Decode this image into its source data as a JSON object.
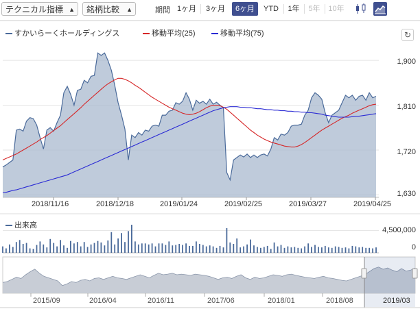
{
  "toolbar": {
    "indicator_select": "テクニカル指標",
    "compare_select": "銘柄比較",
    "period_label": "期間",
    "periods": [
      "1ヶ月",
      "3ヶ月",
      "6ヶ月",
      "YTD",
      "1年",
      "5年",
      "10年"
    ],
    "active_period": "6ヶ月",
    "disabled_periods": [
      "5年",
      "10年"
    ],
    "chart_modes": [
      "candlestick-icon",
      "area-chart-icon"
    ],
    "active_mode": "area-chart-icon"
  },
  "legend": {
    "series": [
      {
        "name": "すかいらーくホールディングス",
        "color": "#4a6a9a"
      },
      {
        "name": "移動平均(25)",
        "color": "#d62728"
      },
      {
        "name": "移動平均(75)",
        "color": "#2a2ad4"
      }
    ]
  },
  "refresh_icon": "refresh-icon",
  "chart_data": [
    {
      "type": "area",
      "x_labels": [
        "2018/11/16",
        "2018/12/18",
        "2019/01/24",
        "2019/02/25",
        "2019/03/27",
        "2019/04/25"
      ],
      "y_ticks": [
        1630,
        1720,
        1810,
        1900
      ],
      "ylim": [
        1625,
        1925
      ],
      "grid": true,
      "series": [
        {
          "name": "すかいらーくホールディングス",
          "values": [
            1686,
            1690,
            1695,
            1700,
            1760,
            1762,
            1758,
            1778,
            1785,
            1783,
            1770,
            1745,
            1722,
            1760,
            1765,
            1758,
            1775,
            1790,
            1835,
            1848,
            1832,
            1810,
            1840,
            1842,
            1860,
            1855,
            1868,
            1870,
            1915,
            1910,
            1915,
            1900,
            1880,
            1850,
            1815,
            1790,
            1762,
            1700,
            1750,
            1745,
            1755,
            1750,
            1760,
            1758,
            1768,
            1770,
            1768,
            1790,
            1790,
            1798,
            1800,
            1815,
            1812,
            1818,
            1835,
            1822,
            1800,
            1820,
            1814,
            1818,
            1812,
            1822,
            1812,
            1816,
            1810,
            1805,
            1675,
            1660,
            1700,
            1705,
            1710,
            1706,
            1712,
            1705,
            1710,
            1705,
            1710,
            1712,
            1708,
            1722,
            1745,
            1740,
            1752,
            1750,
            1755,
            1768,
            1770,
            1770,
            1772,
            1790,
            1800,
            1825,
            1835,
            1830,
            1822,
            1795,
            1775,
            1790,
            1795,
            1800,
            1815,
            1830,
            1825,
            1830,
            1820,
            1828,
            1830,
            1820,
            1835,
            1825,
            1828
          ]
        },
        {
          "name": "移動平均(25)",
          "values": [
            1700,
            1703,
            1706,
            1709,
            1712,
            1716,
            1720,
            1724,
            1728,
            1732,
            1736,
            1741,
            1745,
            1749,
            1754,
            1759,
            1764,
            1769,
            1775,
            1781,
            1787,
            1793,
            1799,
            1805,
            1812,
            1818,
            1824,
            1830,
            1836,
            1842,
            1848,
            1853,
            1857,
            1861,
            1864,
            1864,
            1862,
            1859,
            1855,
            1850,
            1846,
            1841,
            1836,
            1831,
            1826,
            1822,
            1818,
            1814,
            1810,
            1806,
            1803,
            1800,
            1797,
            1794,
            1792,
            1791,
            1792,
            1794,
            1797,
            1801,
            1805,
            1808,
            1810,
            1810,
            1809,
            1806,
            1802,
            1796,
            1790,
            1784,
            1778,
            1772,
            1766,
            1760,
            1755,
            1750,
            1746,
            1742,
            1739,
            1736,
            1734,
            1732,
            1730,
            1728,
            1727,
            1726,
            1726,
            1728,
            1731,
            1735,
            1740,
            1745,
            1750,
            1755,
            1760,
            1764,
            1768,
            1772,
            1776,
            1780,
            1784,
            1787,
            1790,
            1794,
            1797,
            1800,
            1803,
            1806,
            1809,
            1811,
            1812
          ]
        },
        {
          "name": "移動平均(75)",
          "values": [
            1634,
            1635,
            1637,
            1639,
            1640,
            1642,
            1644,
            1646,
            1648,
            1650,
            1652,
            1654,
            1656,
            1658,
            1660,
            1662,
            1664,
            1666,
            1668,
            1670,
            1673,
            1676,
            1679,
            1682,
            1685,
            1688,
            1691,
            1694,
            1697,
            1700,
            1703,
            1706,
            1709,
            1712,
            1715,
            1718,
            1721,
            1724,
            1727,
            1730,
            1733,
            1736,
            1739,
            1742,
            1745,
            1748,
            1751,
            1754,
            1757,
            1760,
            1763,
            1766,
            1769,
            1772,
            1775,
            1778,
            1781,
            1784,
            1787,
            1790,
            1793,
            1796,
            1799,
            1801,
            1803,
            1805,
            1806,
            1807,
            1807,
            1807,
            1806,
            1806,
            1805,
            1805,
            1804,
            1803,
            1803,
            1802,
            1801,
            1801,
            1800,
            1800,
            1799,
            1799,
            1798,
            1798,
            1797,
            1797,
            1796,
            1796,
            1795,
            1795,
            1794,
            1793,
            1792,
            1790,
            1789,
            1788,
            1787,
            1786,
            1786,
            1786,
            1786,
            1787,
            1788,
            1788,
            1789,
            1790,
            1791,
            1792,
            1793
          ]
        }
      ]
    },
    {
      "type": "bar",
      "title": "出来高",
      "y_ticks": [
        0,
        4500000
      ],
      "ylim": [
        0,
        7500000
      ],
      "grid": true,
      "series": [
        {
          "name": "出来高",
          "values": [
            1300000,
            900000,
            1700000,
            1200000,
            2200000,
            2600000,
            1800000,
            2000000,
            900000,
            800000,
            1600000,
            2300000,
            1700000,
            1100000,
            2800000,
            2000000,
            1300000,
            2600000,
            1500000,
            1000000,
            2400000,
            1900000,
            2200000,
            1300000,
            2200000,
            1200000,
            1700000,
            2000000,
            2400000,
            2100000,
            1500000,
            2500000,
            4200000,
            1700000,
            2900000,
            4000000,
            2200000,
            4400000,
            5700000,
            2300000,
            1700000,
            1900000,
            1900000,
            1700000,
            1900000,
            1300000,
            1900000,
            1900000,
            1600000,
            2300000,
            1500000,
            1600000,
            1800000,
            1600000,
            1900000,
            1400000,
            1400000,
            2300000,
            1800000,
            1600000,
            1300000,
            1500000,
            1300000,
            1000000,
            1400000,
            1100000,
            5000000,
            2100000,
            1800000,
            2900000,
            1100000,
            1300000,
            1700000,
            2700000,
            1500000,
            1200000,
            1000000,
            1200000,
            1400000,
            800000,
            2100000,
            1300000,
            1600000,
            1000000,
            1300000,
            1100000,
            1200000,
            1000000,
            900000,
            1300000,
            1900000,
            1200000,
            1600000,
            1200000,
            1100000,
            1400000,
            1100000,
            1000000,
            1300000,
            1200000,
            1000000,
            1100000,
            900000,
            1400000,
            1300000,
            1100000,
            1200000,
            1000000,
            1000000,
            900000,
            1100000
          ]
        }
      ]
    },
    {
      "type": "area",
      "title": "navigator",
      "x_labels": [
        "2015/09",
        "2016/04",
        "2016/11",
        "2017/06",
        "2018/01",
        "2018/08",
        "2019/03"
      ],
      "ylim": [
        0,
        1
      ],
      "series": [
        {
          "name": "すかいらーくホールディングス",
          "values": [
            0.35,
            0.38,
            0.45,
            0.52,
            0.48,
            0.6,
            0.7,
            0.78,
            0.65,
            0.55,
            0.5,
            0.45,
            0.4,
            0.25,
            0.3,
            0.38,
            0.35,
            0.42,
            0.45,
            0.4,
            0.48,
            0.5,
            0.45,
            0.5,
            0.55,
            0.5,
            0.48,
            0.45,
            0.5,
            0.55,
            0.6,
            0.55,
            0.5,
            0.58,
            0.65,
            0.6,
            0.62,
            0.65,
            0.6,
            0.62,
            0.6,
            0.58,
            0.62,
            0.6,
            0.58,
            0.55,
            0.5,
            0.45,
            0.5,
            0.52,
            0.48,
            0.55,
            0.6,
            0.5,
            0.45,
            0.52,
            0.48,
            0.5,
            0.55,
            0.6,
            0.58,
            0.55,
            0.6,
            0.62,
            0.58,
            0.55,
            0.52,
            0.5,
            0.48,
            0.52,
            0.55,
            0.5,
            0.48,
            0.45,
            0.42,
            0.4,
            0.45,
            0.5,
            0.55,
            0.6,
            0.7,
            0.8,
            0.85,
            0.78,
            0.82,
            0.75,
            0.7,
            0.8,
            0.72,
            0.75,
            0.82
          ]
        }
      ],
      "selected_range": "2018/10 - 2019/04"
    }
  ]
}
